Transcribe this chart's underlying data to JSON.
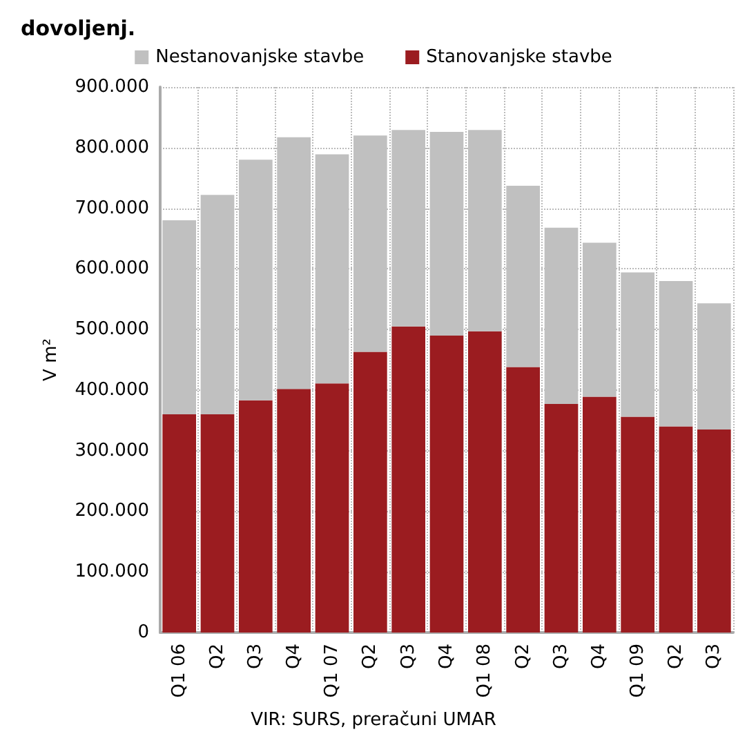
{
  "chart_data": {
    "type": "bar",
    "title": "dovoljenj.",
    "ylabel": "V m²",
    "stacked": true,
    "categories": [
      "Q1 06",
      "Q2",
      "Q3",
      "Q4",
      "Q1 07",
      "Q2",
      "Q3",
      "Q4",
      "Q1 08",
      "Q2",
      "Q3",
      "Q4",
      "Q1 09",
      "Q2",
      "Q3"
    ],
    "series": [
      {
        "name": "Stanovanjske stavbe",
        "color": "#9b1c20",
        "values": [
          360000,
          360000,
          383000,
          402000,
          411000,
          463000,
          505000,
          490000,
          497000,
          438000,
          377000,
          389000,
          356000,
          340000,
          335000
        ]
      },
      {
        "name": "Nestanovanjske stavbe",
        "color": "#c0c0c0",
        "values": [
          320000,
          362000,
          397000,
          415000,
          378000,
          357000,
          324000,
          336000,
          332000,
          299000,
          291000,
          254000,
          238000,
          240000,
          208000
        ]
      }
    ],
    "ylim": [
      0,
      900000
    ],
    "yticks": [
      {
        "value": 0,
        "label": "0"
      },
      {
        "value": 100000,
        "label": "100.000"
      },
      {
        "value": 200000,
        "label": "200.000"
      },
      {
        "value": 300000,
        "label": "300.000"
      },
      {
        "value": 400000,
        "label": "400.000"
      },
      {
        "value": 500000,
        "label": "500.000"
      },
      {
        "value": 600000,
        "label": "600.000"
      },
      {
        "value": 700000,
        "label": "700.000"
      },
      {
        "value": 800000,
        "label": "800.000"
      },
      {
        "value": 900000,
        "label": "900.000"
      }
    ],
    "grid": true,
    "legend": "top",
    "annotations": [
      "VIR: SURS, preračuni UMAR"
    ]
  }
}
